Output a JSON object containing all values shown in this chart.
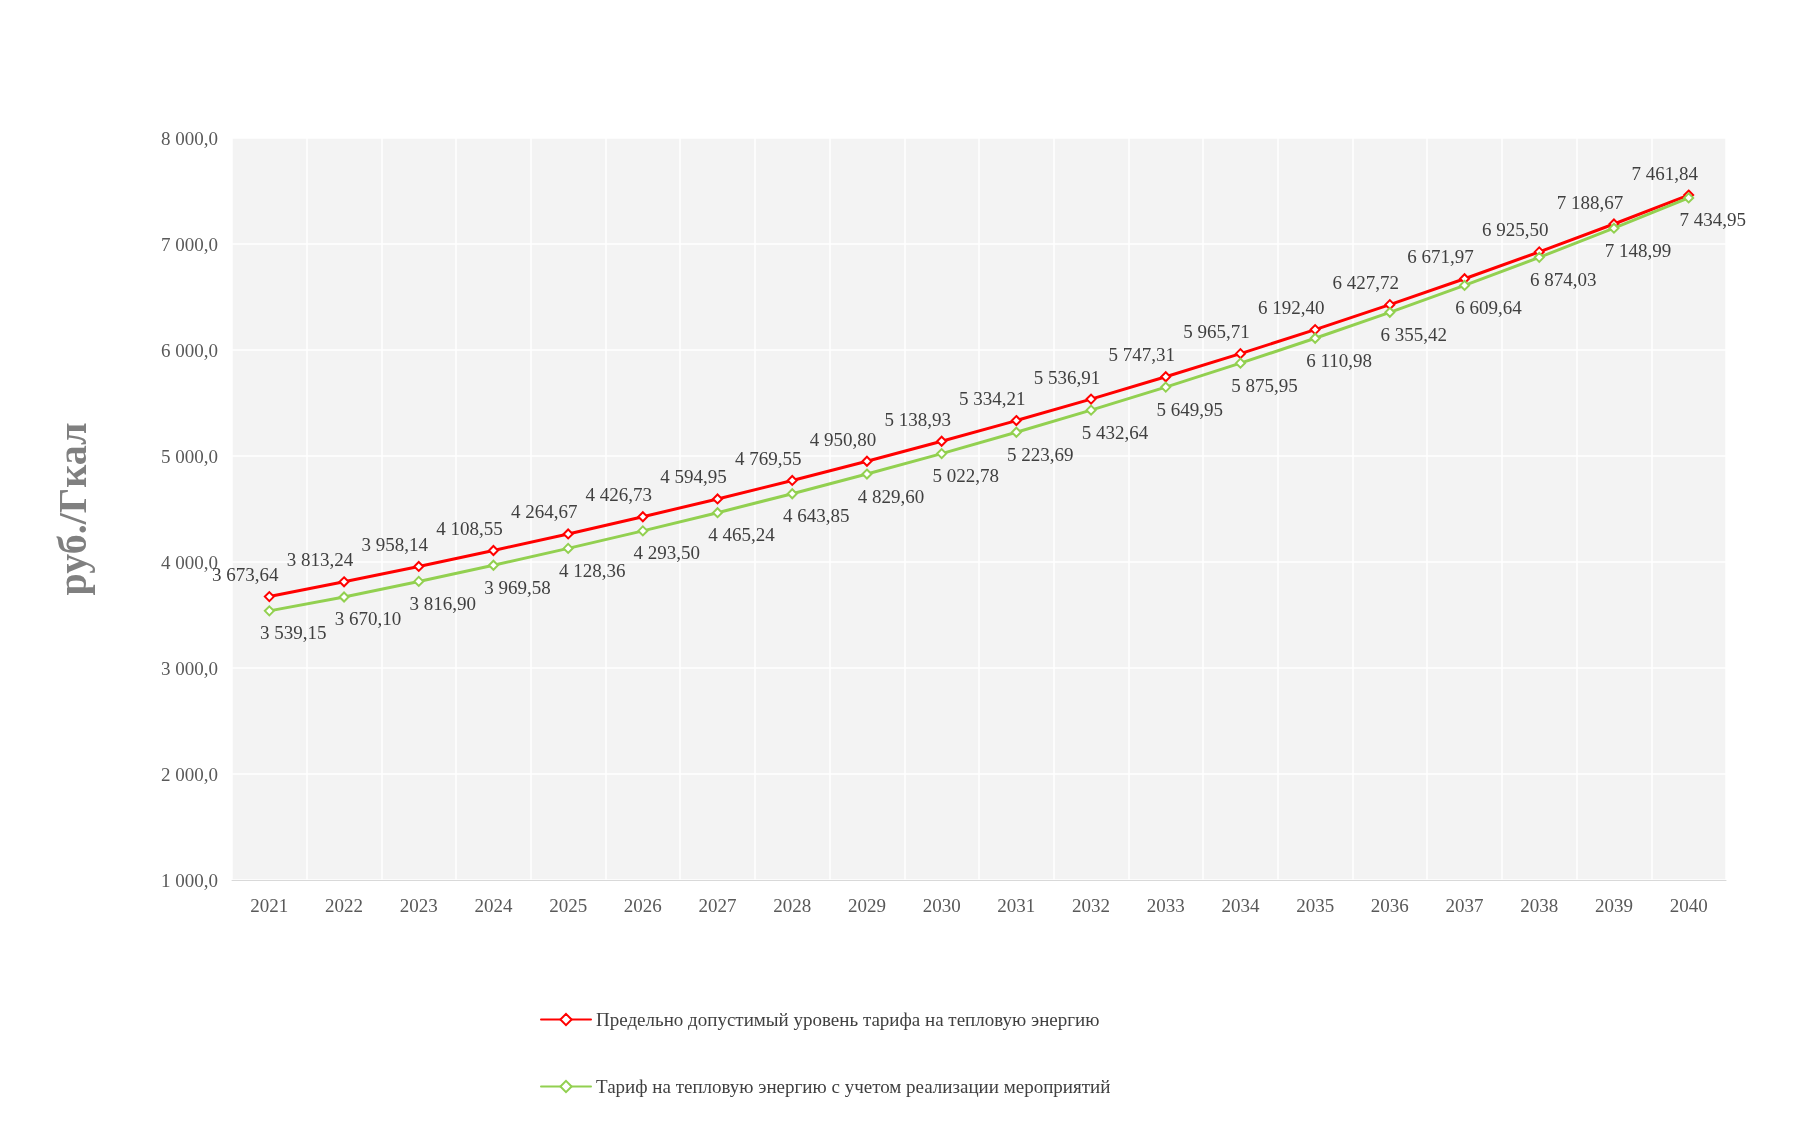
{
  "chart_data": {
    "type": "line",
    "ylabel": "руб./Гкал",
    "categories": [
      "2021",
      "2022",
      "2023",
      "2024",
      "2025",
      "2026",
      "2027",
      "2028",
      "2029",
      "2030",
      "2031",
      "2032",
      "2033",
      "2034",
      "2035",
      "2036",
      "2037",
      "2038",
      "2039",
      "2040"
    ],
    "series": [
      {
        "name": "Предельно допустимый уровень тарифа на тепловую энергию",
        "color": "#ff0000",
        "values": [
          3673.64,
          3813.24,
          3958.14,
          4108.55,
          4264.67,
          4426.73,
          4594.95,
          4769.55,
          4950.8,
          5138.93,
          5334.21,
          5536.91,
          5747.31,
          5965.71,
          6192.4,
          6427.72,
          6671.97,
          6925.5,
          7188.67,
          7461.84
        ],
        "value_labels": [
          "3 673,64",
          "3 813,24",
          "3 958,14",
          "4 108,55",
          "4 264,67",
          "4 426,73",
          "4 594,95",
          "4 769,55",
          "4 950,80",
          "5 138,93",
          "5 334,21",
          "5 536,91",
          "5 747,31",
          "5 965,71",
          "6 192,40",
          "6 427,72",
          "6 671,97",
          "6 925,50",
          "7 188,67",
          "7 461,84"
        ]
      },
      {
        "name": "Тариф на тепловую энергию с учетом реализации мероприятий",
        "color": "#92d050",
        "values": [
          3539.15,
          3670.1,
          3816.9,
          3969.58,
          4128.36,
          4293.5,
          4465.24,
          4643.85,
          4829.6,
          5022.78,
          5223.69,
          5432.64,
          5649.95,
          5875.95,
          6110.98,
          6355.42,
          6609.64,
          6874.03,
          7148.99,
          7434.95
        ],
        "value_labels": [
          "3 539,15",
          "3 670,10",
          "3 816,90",
          "3 969,58",
          "4 128,36",
          "4 293,50",
          "4 465,24",
          "4 643,85",
          "4 829,60",
          "5 022,78",
          "5 223,69",
          "5 432,64",
          "5 649,95",
          "5 875,95",
          "6 110,98",
          "6 355,42",
          "6 609,64",
          "6 874,03",
          "7 148,99",
          "7 434,95"
        ]
      }
    ],
    "ylim": [
      1000,
      8000
    ],
    "yticks": [
      {
        "value": 1000,
        "label": "1 000,0"
      },
      {
        "value": 2000,
        "label": "2 000,0"
      },
      {
        "value": 3000,
        "label": "3 000,0"
      },
      {
        "value": 4000,
        "label": "4 000,0"
      },
      {
        "value": 5000,
        "label": "5 000,0"
      },
      {
        "value": 6000,
        "label": "6 000,0"
      },
      {
        "value": 7000,
        "label": "7 000,0"
      },
      {
        "value": 8000,
        "label": "8 000,0"
      }
    ],
    "grid": true,
    "legend": "bottom",
    "marker": "diamond",
    "line_style": "solid"
  }
}
